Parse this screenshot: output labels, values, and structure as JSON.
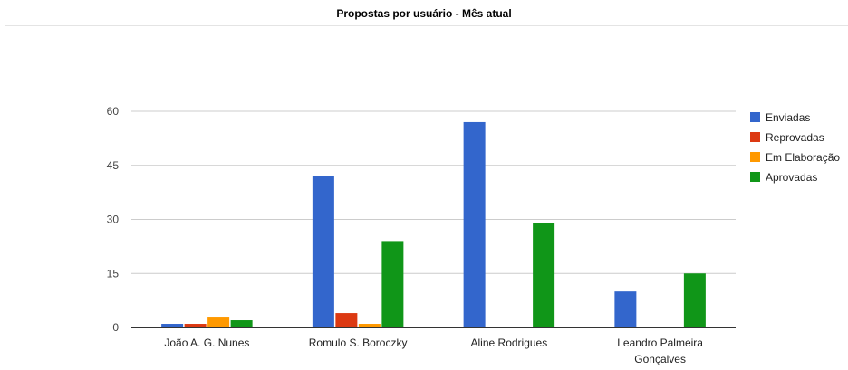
{
  "header": {
    "title": "Propostas por usuário - Mês atual"
  },
  "chart_data": {
    "type": "bar",
    "title": "Propostas por usuário - Mês atual",
    "categories": [
      [
        "João A. G. Nunes"
      ],
      [
        "Romulo S. Boroczky"
      ],
      [
        "Aline Rodrigues"
      ],
      [
        "Leandro Palmeira",
        "Gonçalves"
      ]
    ],
    "series": [
      {
        "name": "Enviadas",
        "color": "#3366cc",
        "values": [
          1,
          42,
          57,
          10
        ]
      },
      {
        "name": "Reprovadas",
        "color": "#dc3912",
        "values": [
          1,
          4,
          0,
          0
        ]
      },
      {
        "name": "Em Elaboração",
        "color": "#ff9900",
        "values": [
          3,
          1,
          0,
          0
        ]
      },
      {
        "name": "Aprovadas",
        "color": "#109618",
        "values": [
          2,
          24,
          29,
          15
        ]
      }
    ],
    "ylim": [
      0,
      60
    ],
    "yticks": [
      0,
      15,
      30,
      45,
      60
    ],
    "grid": true,
    "legend_position": "right",
    "xlabel": "",
    "ylabel": ""
  }
}
